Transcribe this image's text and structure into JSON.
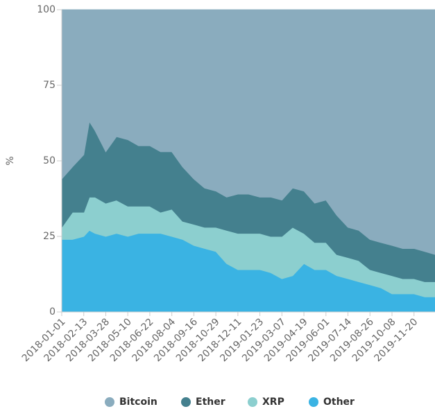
{
  "chart_data": {
    "type": "stacked_area",
    "y_label": "%",
    "x": [
      "2018-01-01",
      "2018-01-22",
      "2018-02-13",
      "2018-02-24",
      "2018-03-07",
      "2018-03-28",
      "2018-04-18",
      "2018-05-10",
      "2018-05-31",
      "2018-06-22",
      "2018-07-13",
      "2018-08-04",
      "2018-08-25",
      "2018-09-16",
      "2018-10-07",
      "2018-10-29",
      "2018-11-19",
      "2018-12-11",
      "2019-01-01",
      "2019-01-23",
      "2019-02-13",
      "2019-03-07",
      "2019-03-28",
      "2019-04-19",
      "2019-05-10",
      "2019-06-01",
      "2019-06-22",
      "2019-07-14",
      "2019-08-04",
      "2019-08-26",
      "2019-09-16",
      "2019-10-08",
      "2019-10-29",
      "2019-11-20",
      "2019-12-11",
      "2019-12-31"
    ],
    "xlim": [
      "2018-01-01",
      "2019-12-31"
    ],
    "xticks": [
      "2018-01-01",
      "2018-02-13",
      "2018-03-28",
      "2018-05-10",
      "2018-06-22",
      "2018-08-04",
      "2018-09-16",
      "2018-10-29",
      "2018-12-11",
      "2019-01-23",
      "2019-03-07",
      "2019-04-19",
      "2019-06-01",
      "2019-07-14",
      "2019-08-26",
      "2019-10-08",
      "2019-11-20"
    ],
    "ylim": [
      0,
      100
    ],
    "yticks": [
      0,
      25,
      50,
      75,
      100
    ],
    "series": [
      {
        "name": "Other",
        "color": "#3ab3e3",
        "values": [
          24,
          24,
          25,
          27,
          26,
          25,
          26,
          25,
          26,
          26,
          26,
          25,
          24,
          22,
          21,
          20,
          16,
          14,
          14,
          14,
          13,
          11,
          12,
          16,
          14,
          14,
          12,
          11,
          10,
          9,
          8,
          6,
          6,
          6,
          5,
          5
        ]
      },
      {
        "name": "XRP",
        "color": "#8ccfcf",
        "values": [
          4,
          9,
          8,
          11,
          12,
          11,
          11,
          10,
          9,
          9,
          7,
          9,
          6,
          7,
          7,
          8,
          11,
          12,
          12,
          12,
          12,
          14,
          16,
          10,
          9,
          9,
          7,
          7,
          7,
          5,
          5,
          6,
          5,
          5,
          5,
          5
        ]
      },
      {
        "name": "Ether",
        "color": "#44808e",
        "values": [
          16,
          15,
          19,
          25,
          22,
          17,
          21,
          22,
          20,
          20,
          20,
          19,
          18,
          15,
          13,
          12,
          11,
          13,
          13,
          12,
          13,
          12,
          13,
          14,
          13,
          14,
          13,
          10,
          10,
          10,
          10,
          10,
          10,
          10,
          10,
          9
        ]
      },
      {
        "name": "Bitcoin",
        "color": "#8aacbe",
        "values": [
          56,
          52,
          48,
          37,
          40,
          47,
          42,
          43,
          45,
          45,
          47,
          47,
          52,
          56,
          59,
          60,
          62,
          61,
          61,
          62,
          62,
          63,
          59,
          60,
          64,
          63,
          68,
          72,
          73,
          76,
          77,
          78,
          79,
          79,
          80,
          81
        ]
      }
    ],
    "legend_order": [
      "Bitcoin",
      "Ether",
      "XRP",
      "Other"
    ]
  }
}
